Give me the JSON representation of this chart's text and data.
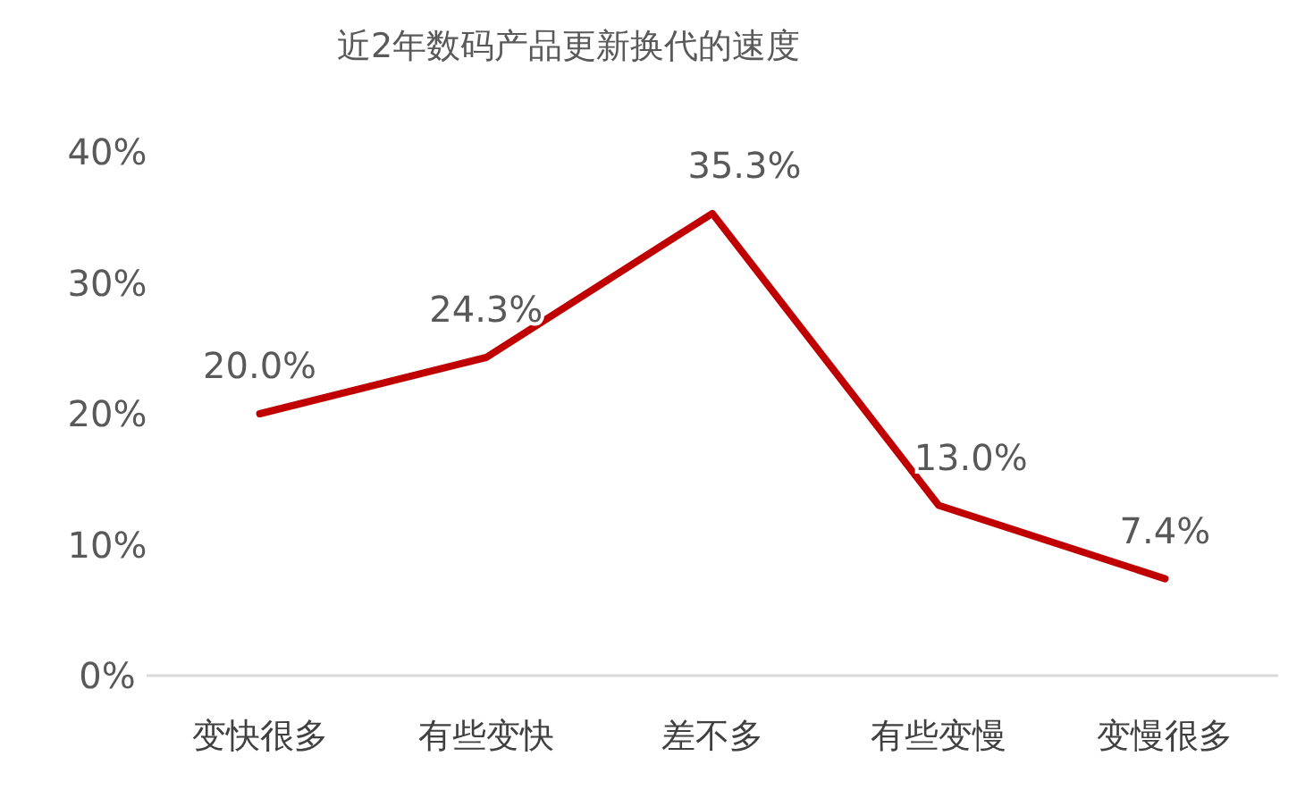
{
  "chart_data": {
    "type": "line",
    "title": "近2年数码产品更新换代的速度",
    "categories": [
      "变快很多",
      "有些变快",
      "差不多",
      "有些变慢",
      "变慢很多"
    ],
    "series": [
      {
        "color": "#c00000",
        "values": [
          20.0,
          24.3,
          35.3,
          13.0,
          7.4
        ],
        "value_labels": [
          "20.0%",
          "24.3%",
          "35.3%",
          "13.0%",
          "7.4%"
        ]
      }
    ],
    "ylim": [
      0,
      40
    ],
    "yticks": [
      {
        "value": 0,
        "label": "0%"
      },
      {
        "value": 10,
        "label": "10%"
      },
      {
        "value": 20,
        "label": "20%"
      },
      {
        "value": 30,
        "label": "30%"
      },
      {
        "value": 40,
        "label": "40%"
      }
    ],
    "grid": false,
    "marker": "none",
    "line_style": "solid"
  }
}
